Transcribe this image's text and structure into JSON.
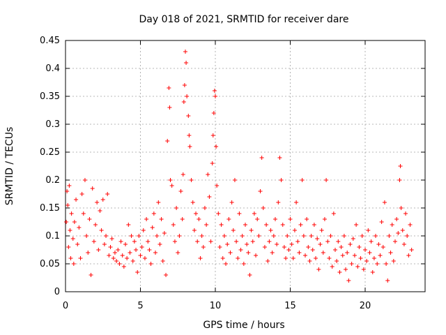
{
  "chart_data": {
    "type": "scatter",
    "title": "Day 018 of 2021, SRMTID for receiver dare",
    "xlabel": "GPS time / hours",
    "ylabel": "SRMTID / TECUs",
    "xlim": [
      0,
      24
    ],
    "ylim": [
      0,
      0.45
    ],
    "xticks": [
      0,
      5,
      10,
      15,
      20
    ],
    "yticks": [
      0,
      0.05,
      0.1,
      0.15,
      0.2,
      0.25,
      0.3,
      0.35,
      0.4,
      0.45
    ],
    "xtick_labels": [
      "0",
      "5",
      "10",
      "15",
      "20"
    ],
    "ytick_labels": [
      "0",
      "0.05",
      "0.1",
      "0.15",
      "0.2",
      "0.25",
      "0.3",
      "0.35",
      "0.4",
      "0.45"
    ],
    "grid": true,
    "marker": "+",
    "color": "#ff0000",
    "series": [
      {
        "name": "SRMTID",
        "points": [
          [
            0.05,
            0.125
          ],
          [
            0.1,
            0.18
          ],
          [
            0.15,
            0.155
          ],
          [
            0.2,
            0.08
          ],
          [
            0.25,
            0.19
          ],
          [
            0.3,
            0.11
          ],
          [
            0.35,
            0.06
          ],
          [
            0.4,
            0.14
          ],
          [
            0.5,
            0.095
          ],
          [
            0.55,
            0.05
          ],
          [
            0.6,
            0.125
          ],
          [
            0.7,
            0.165
          ],
          [
            0.8,
            0.085
          ],
          [
            0.9,
            0.115
          ],
          [
            1.0,
            0.06
          ],
          [
            1.1,
            0.175
          ],
          [
            1.2,
            0.14
          ],
          [
            1.3,
            0.2
          ],
          [
            1.4,
            0.1
          ],
          [
            1.5,
            0.07
          ],
          [
            1.6,
            0.13
          ],
          [
            1.7,
            0.03
          ],
          [
            1.8,
            0.185
          ],
          [
            1.9,
            0.09
          ],
          [
            2.0,
            0.12
          ],
          [
            2.1,
            0.16
          ],
          [
            2.2,
            0.075
          ],
          [
            2.3,
            0.145
          ],
          [
            2.4,
            0.11
          ],
          [
            2.5,
            0.165
          ],
          [
            2.6,
            0.085
          ],
          [
            2.7,
            0.1
          ],
          [
            2.8,
            0.175
          ],
          [
            2.9,
            0.065
          ],
          [
            3.0,
            0.08
          ],
          [
            3.1,
            0.095
          ],
          [
            3.2,
            0.06
          ],
          [
            3.3,
            0.07
          ],
          [
            3.4,
            0.055
          ],
          [
            3.5,
            0.075
          ],
          [
            3.6,
            0.05
          ],
          [
            3.7,
            0.09
          ],
          [
            3.8,
            0.065
          ],
          [
            3.9,
            0.045
          ],
          [
            4.0,
            0.085
          ],
          [
            4.1,
            0.06
          ],
          [
            4.2,
            0.12
          ],
          [
            4.3,
            0.07
          ],
          [
            4.4,
            0.1
          ],
          [
            4.5,
            0.055
          ],
          [
            4.6,
            0.09
          ],
          [
            4.7,
            0.075
          ],
          [
            4.8,
            0.035
          ],
          [
            4.9,
            0.1
          ],
          [
            5.0,
            0.065
          ],
          [
            5.1,
            0.08
          ],
          [
            5.2,
            0.11
          ],
          [
            5.3,
            0.06
          ],
          [
            5.4,
            0.13
          ],
          [
            5.5,
            0.09
          ],
          [
            5.6,
            0.075
          ],
          [
            5.7,
            0.05
          ],
          [
            5.8,
            0.115
          ],
          [
            5.9,
            0.14
          ],
          [
            6.0,
            0.07
          ],
          [
            6.1,
            0.1
          ],
          [
            6.2,
            0.16
          ],
          [
            6.3,
            0.085
          ],
          [
            6.4,
            0.13
          ],
          [
            6.5,
            0.055
          ],
          [
            6.6,
            0.105
          ],
          [
            6.7,
            0.03
          ],
          [
            6.8,
            0.27
          ],
          [
            6.9,
            0.365
          ],
          [
            6.95,
            0.33
          ],
          [
            7.0,
            0.2
          ],
          [
            7.1,
            0.19
          ],
          [
            7.2,
            0.12
          ],
          [
            7.3,
            0.09
          ],
          [
            7.4,
            0.15
          ],
          [
            7.5,
            0.07
          ],
          [
            7.6,
            0.1
          ],
          [
            7.7,
            0.18
          ],
          [
            7.8,
            0.13
          ],
          [
            7.85,
            0.21
          ],
          [
            7.9,
            0.34
          ],
          [
            7.95,
            0.37
          ],
          [
            8.0,
            0.43
          ],
          [
            8.05,
            0.41
          ],
          [
            8.1,
            0.35
          ],
          [
            8.2,
            0.315
          ],
          [
            8.25,
            0.28
          ],
          [
            8.3,
            0.26
          ],
          [
            8.4,
            0.2
          ],
          [
            8.5,
            0.16
          ],
          [
            8.6,
            0.11
          ],
          [
            8.7,
            0.14
          ],
          [
            8.8,
            0.09
          ],
          [
            8.9,
            0.13
          ],
          [
            9.0,
            0.06
          ],
          [
            9.1,
            0.1
          ],
          [
            9.2,
            0.08
          ],
          [
            9.3,
            0.15
          ],
          [
            9.4,
            0.12
          ],
          [
            9.5,
            0.21
          ],
          [
            9.6,
            0.17
          ],
          [
            9.7,
            0.09
          ],
          [
            9.8,
            0.23
          ],
          [
            9.85,
            0.28
          ],
          [
            9.9,
            0.32
          ],
          [
            9.95,
            0.36
          ],
          [
            10.0,
            0.35
          ],
          [
            10.05,
            0.26
          ],
          [
            10.1,
            0.19
          ],
          [
            10.2,
            0.14
          ],
          [
            10.3,
            0.08
          ],
          [
            10.4,
            0.12
          ],
          [
            10.5,
            0.06
          ],
          [
            10.6,
            0.1
          ],
          [
            10.7,
            0.05
          ],
          [
            10.8,
            0.085
          ],
          [
            10.9,
            0.13
          ],
          [
            11.0,
            0.07
          ],
          [
            11.1,
            0.16
          ],
          [
            11.2,
            0.11
          ],
          [
            11.3,
            0.2
          ],
          [
            11.4,
            0.09
          ],
          [
            11.5,
            0.06
          ],
          [
            11.6,
            0.14
          ],
          [
            11.7,
            0.075
          ],
          [
            11.8,
            0.1
          ],
          [
            11.9,
            0.05
          ],
          [
            12.0,
            0.12
          ],
          [
            12.1,
            0.085
          ],
          [
            12.2,
            0.07
          ],
          [
            12.3,
            0.03
          ],
          [
            12.4,
            0.11
          ],
          [
            12.5,
            0.09
          ],
          [
            12.6,
            0.14
          ],
          [
            12.7,
            0.065
          ],
          [
            12.8,
            0.13
          ],
          [
            12.9,
            0.1
          ],
          [
            13.0,
            0.18
          ],
          [
            13.1,
            0.24
          ],
          [
            13.2,
            0.15
          ],
          [
            13.3,
            0.08
          ],
          [
            13.4,
            0.12
          ],
          [
            13.5,
            0.055
          ],
          [
            13.6,
            0.09
          ],
          [
            13.7,
            0.11
          ],
          [
            13.8,
            0.07
          ],
          [
            13.9,
            0.1
          ],
          [
            14.0,
            0.13
          ],
          [
            14.1,
            0.085
          ],
          [
            14.2,
            0.16
          ],
          [
            14.3,
            0.24
          ],
          [
            14.4,
            0.2
          ],
          [
            14.5,
            0.12
          ],
          [
            14.6,
            0.08
          ],
          [
            14.7,
            0.06
          ],
          [
            14.8,
            0.1
          ],
          [
            14.9,
            0.075
          ],
          [
            15.0,
            0.13
          ],
          [
            15.1,
            0.085
          ],
          [
            15.2,
            0.06
          ],
          [
            15.3,
            0.11
          ],
          [
            15.4,
            0.16
          ],
          [
            15.5,
            0.09
          ],
          [
            15.6,
            0.07
          ],
          [
            15.7,
            0.12
          ],
          [
            15.8,
            0.2
          ],
          [
            15.9,
            0.1
          ],
          [
            16.0,
            0.065
          ],
          [
            16.1,
            0.13
          ],
          [
            16.2,
            0.08
          ],
          [
            16.3,
            0.055
          ],
          [
            16.4,
            0.1
          ],
          [
            16.5,
            0.075
          ],
          [
            16.6,
            0.12
          ],
          [
            16.7,
            0.06
          ],
          [
            16.8,
            0.095
          ],
          [
            16.9,
            0.04
          ],
          [
            17.0,
            0.085
          ],
          [
            17.1,
            0.11
          ],
          [
            17.2,
            0.07
          ],
          [
            17.3,
            0.13
          ],
          [
            17.4,
            0.2
          ],
          [
            17.5,
            0.09
          ],
          [
            17.6,
            0.06
          ],
          [
            17.7,
            0.1
          ],
          [
            17.8,
            0.045
          ],
          [
            17.9,
            0.14
          ],
          [
            18.0,
            0.075
          ],
          [
            18.1,
            0.055
          ],
          [
            18.2,
            0.09
          ],
          [
            18.3,
            0.035
          ],
          [
            18.4,
            0.08
          ],
          [
            18.5,
            0.065
          ],
          [
            18.6,
            0.1
          ],
          [
            18.7,
            0.04
          ],
          [
            18.8,
            0.07
          ],
          [
            18.9,
            0.02
          ],
          [
            19.0,
            0.085
          ],
          [
            19.1,
            0.05
          ],
          [
            19.2,
            0.095
          ],
          [
            19.3,
            0.065
          ],
          [
            19.4,
            0.12
          ],
          [
            19.5,
            0.045
          ],
          [
            19.6,
            0.08
          ],
          [
            19.7,
            0.06
          ],
          [
            19.8,
            0.1
          ],
          [
            19.9,
            0.04
          ],
          [
            20.0,
            0.075
          ],
          [
            20.1,
            0.055
          ],
          [
            20.2,
            0.11
          ],
          [
            20.3,
            0.07
          ],
          [
            20.4,
            0.09
          ],
          [
            20.5,
            0.035
          ],
          [
            20.6,
            0.06
          ],
          [
            20.7,
            0.1
          ],
          [
            20.8,
            0.05
          ],
          [
            20.9,
            0.085
          ],
          [
            21.0,
            0.065
          ],
          [
            21.1,
            0.125
          ],
          [
            21.2,
            0.08
          ],
          [
            21.3,
            0.16
          ],
          [
            21.4,
            0.05
          ],
          [
            21.5,
            0.02
          ],
          [
            21.6,
            0.1
          ],
          [
            21.7,
            0.07
          ],
          [
            21.8,
            0.12
          ],
          [
            21.9,
            0.055
          ],
          [
            22.0,
            0.09
          ],
          [
            22.1,
            0.13
          ],
          [
            22.2,
            0.105
          ],
          [
            22.3,
            0.2
          ],
          [
            22.35,
            0.225
          ],
          [
            22.4,
            0.15
          ],
          [
            22.5,
            0.11
          ],
          [
            22.6,
            0.085
          ],
          [
            22.7,
            0.14
          ],
          [
            22.8,
            0.1
          ],
          [
            22.9,
            0.065
          ],
          [
            23.0,
            0.12
          ],
          [
            23.1,
            0.075
          ]
        ]
      }
    ]
  }
}
